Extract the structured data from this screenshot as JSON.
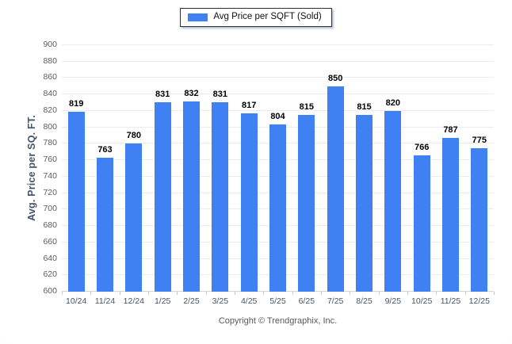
{
  "legend": {
    "label": "Avg Price per SQFT (Sold)"
  },
  "footer": {
    "copyright": "Copyright © Trendgraphix, Inc."
  },
  "chart_data": {
    "type": "bar",
    "title": "",
    "legend_entries": [
      "Avg Price per SQFT (Sold)"
    ],
    "legend_position": "top",
    "categories": [
      "10/24",
      "11/24",
      "12/24",
      "1/25",
      "2/25",
      "3/25",
      "4/25",
      "5/25",
      "6/25",
      "7/25",
      "8/25",
      "9/25",
      "10/25",
      "11/25",
      "12/25"
    ],
    "values": [
      819,
      763,
      780,
      831,
      832,
      831,
      817,
      804,
      815,
      850,
      815,
      820,
      766,
      787,
      775
    ],
    "xlabel": "",
    "ylabel": "Avg. Price per SQ. FT.",
    "ylim": [
      600,
      900
    ],
    "ytick_step": 20,
    "grid": true,
    "value_labels": true,
    "bar_color": "#3f81f3"
  }
}
